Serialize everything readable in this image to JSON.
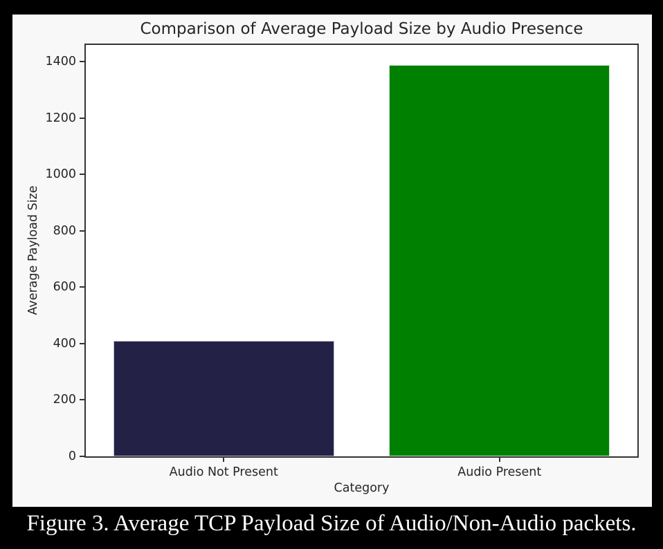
{
  "page": {
    "background_color": "#000000",
    "figure_background_color": "#f8f8f8",
    "plot_background_color": "#ffffff",
    "caption": "Figure 3. Average TCP Payload Size of Audio/Non-Audio packets.",
    "caption_color": "#ffffff"
  },
  "chart_data": {
    "type": "bar",
    "title": "Comparison of Average Payload Size by Audio Presence",
    "xlabel": "Category",
    "ylabel": "Average Payload Size",
    "categories": [
      "Audio Not Present",
      "Audio Present"
    ],
    "values": [
      410,
      1388
    ],
    "bar_colors": [
      "#232246",
      "#008000"
    ],
    "bar_edge_colors": [
      "#b6b7d8",
      "#cfe6cf"
    ],
    "yticks": [
      0,
      200,
      400,
      600,
      800,
      1000,
      1200,
      1400
    ],
    "ylim": [
      0,
      1460
    ],
    "bar_width_fraction": 0.4,
    "grid": false,
    "legend": "none",
    "text_color": "#262626",
    "spine_color": "#333333"
  }
}
